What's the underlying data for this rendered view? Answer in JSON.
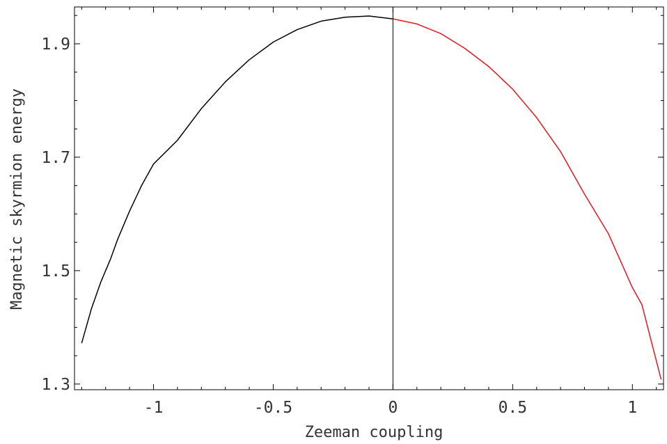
{
  "chart_data": {
    "type": "line",
    "title": "",
    "xlabel": "Zeeman coupling",
    "ylabel": "Magnetic skyrmion energy",
    "xlim": [
      -1.33,
      1.13
    ],
    "ylim": [
      1.29,
      1.965
    ],
    "xticks": [
      -1,
      -0.5,
      0,
      0.5,
      1
    ],
    "xtick_labels": [
      "-1",
      "-0.5",
      "0",
      "0.5",
      "1"
    ],
    "yticks": [
      1.3,
      1.5,
      1.7,
      1.9
    ],
    "ytick_labels": [
      "1.3",
      "1.5",
      "1.7",
      "1.9"
    ],
    "grid": false,
    "legend": "none",
    "reference_line_x": 0,
    "series": [
      {
        "color": "#000000",
        "x": [
          -1.3,
          -1.26,
          -1.22,
          -1.18,
          -1.15,
          -1.1,
          -1.05,
          -1.0,
          -0.9,
          -0.8,
          -0.7,
          -0.6,
          -0.5,
          -0.4,
          -0.3,
          -0.2,
          -0.1,
          0.0
        ],
        "y": [
          1.372,
          1.432,
          1.48,
          1.52,
          1.555,
          1.605,
          1.65,
          1.688,
          1.73,
          1.786,
          1.833,
          1.872,
          1.903,
          1.925,
          1.94,
          1.947,
          1.949,
          1.944
        ]
      },
      {
        "color": "#e8141e",
        "x": [
          0.0,
          0.1,
          0.2,
          0.3,
          0.4,
          0.5,
          0.6,
          0.7,
          0.8,
          0.9,
          1.0,
          1.04,
          1.12
        ],
        "y": [
          1.944,
          1.935,
          1.918,
          1.892,
          1.86,
          1.82,
          1.77,
          1.71,
          1.635,
          1.565,
          1.47,
          1.44,
          1.308
        ]
      }
    ]
  }
}
